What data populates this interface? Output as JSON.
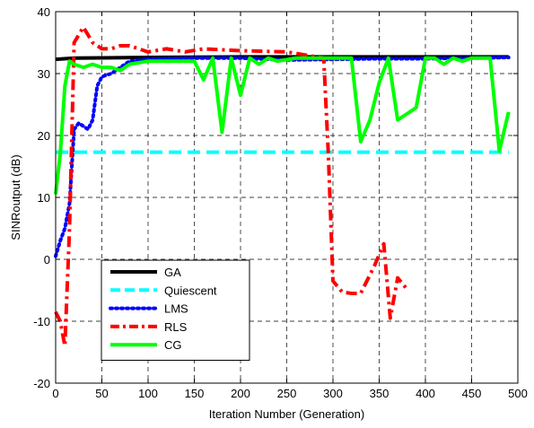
{
  "chart_data": {
    "type": "line",
    "title": "",
    "xlabel": "Iteration Number (Generation)",
    "ylabel": "SINRoutput (dB)",
    "xlim": [
      0,
      500
    ],
    "ylim": [
      -20,
      40
    ],
    "xticks": [
      0,
      50,
      100,
      150,
      200,
      250,
      300,
      350,
      400,
      450,
      500
    ],
    "yticks": [
      -20,
      -10,
      0,
      10,
      20,
      30,
      40
    ],
    "grid": true,
    "legend_position": "bottom-left",
    "series": [
      {
        "name": "GA",
        "color": "#000000",
        "style": "solid",
        "points": [
          [
            0,
            32.3
          ],
          [
            20,
            32.5
          ],
          [
            100,
            32.6
          ],
          [
            200,
            32.7
          ],
          [
            300,
            32.7
          ],
          [
            400,
            32.7
          ],
          [
            490,
            32.7
          ]
        ]
      },
      {
        "name": "Quiescent",
        "color": "#00ffff",
        "style": "dashed",
        "points": [
          [
            0,
            17.3
          ],
          [
            490,
            17.3
          ]
        ]
      },
      {
        "name": "LMS",
        "color": "#0000ff",
        "style": "dotted",
        "points": [
          [
            0,
            0.5
          ],
          [
            5,
            3
          ],
          [
            10,
            5
          ],
          [
            15,
            9
          ],
          [
            20,
            21
          ],
          [
            25,
            22
          ],
          [
            30,
            21.5
          ],
          [
            35,
            21
          ],
          [
            40,
            22.5
          ],
          [
            45,
            28
          ],
          [
            50,
            29.5
          ],
          [
            60,
            30
          ],
          [
            70,
            31
          ],
          [
            80,
            32
          ],
          [
            100,
            32.3
          ],
          [
            150,
            32.5
          ],
          [
            200,
            32.5
          ],
          [
            250,
            32.2
          ],
          [
            300,
            32.3
          ],
          [
            350,
            32.4
          ],
          [
            400,
            32.4
          ],
          [
            450,
            32.5
          ],
          [
            490,
            32.6
          ]
        ]
      },
      {
        "name": "RLS",
        "color": "#ff0000",
        "style": "dashdot",
        "points": [
          [
            0,
            -8.5
          ],
          [
            5,
            -10
          ],
          [
            10,
            -14
          ],
          [
            15,
            5
          ],
          [
            20,
            35
          ],
          [
            30,
            37.5
          ],
          [
            40,
            35
          ],
          [
            50,
            34
          ],
          [
            60,
            34
          ],
          [
            70,
            34.5
          ],
          [
            80,
            34.5
          ],
          [
            90,
            34
          ],
          [
            100,
            33.5
          ],
          [
            120,
            34
          ],
          [
            140,
            33.5
          ],
          [
            160,
            34
          ],
          [
            200,
            33.7
          ],
          [
            250,
            33.5
          ],
          [
            290,
            32.5
          ],
          [
            295,
            17
          ],
          [
            300,
            -3.5
          ],
          [
            310,
            -5.3
          ],
          [
            320,
            -5.5
          ],
          [
            330,
            -5.5
          ],
          [
            345,
            -1
          ],
          [
            355,
            2.5
          ],
          [
            362,
            -9.5
          ],
          [
            370,
            -3
          ],
          [
            380,
            -4.8
          ]
        ]
      },
      {
        "name": "CG",
        "color": "#00ff00",
        "style": "solid",
        "points": [
          [
            0,
            10.5
          ],
          [
            5,
            17
          ],
          [
            10,
            28
          ],
          [
            15,
            32
          ],
          [
            20,
            31.5
          ],
          [
            30,
            31
          ],
          [
            40,
            31.5
          ],
          [
            50,
            31
          ],
          [
            60,
            31
          ],
          [
            70,
            30.5
          ],
          [
            80,
            31.5
          ],
          [
            100,
            32
          ],
          [
            120,
            32
          ],
          [
            140,
            32
          ],
          [
            150,
            32
          ],
          [
            160,
            29
          ],
          [
            170,
            32.5
          ],
          [
            180,
            20.5
          ],
          [
            190,
            32.5
          ],
          [
            200,
            26.5
          ],
          [
            210,
            32.5
          ],
          [
            220,
            31.5
          ],
          [
            230,
            32.5
          ],
          [
            240,
            32
          ],
          [
            260,
            32.5
          ],
          [
            280,
            32.5
          ],
          [
            300,
            32.5
          ],
          [
            310,
            32.5
          ],
          [
            320,
            32.5
          ],
          [
            330,
            19
          ],
          [
            340,
            22.5
          ],
          [
            350,
            28.5
          ],
          [
            360,
            32.5
          ],
          [
            370,
            22.5
          ],
          [
            380,
            23.5
          ],
          [
            390,
            24.5
          ],
          [
            400,
            32.5
          ],
          [
            410,
            32.5
          ],
          [
            420,
            31.5
          ],
          [
            430,
            32.5
          ],
          [
            440,
            32
          ],
          [
            450,
            32.5
          ],
          [
            470,
            32.5
          ],
          [
            480,
            17.5
          ],
          [
            490,
            23.8
          ]
        ]
      }
    ]
  }
}
